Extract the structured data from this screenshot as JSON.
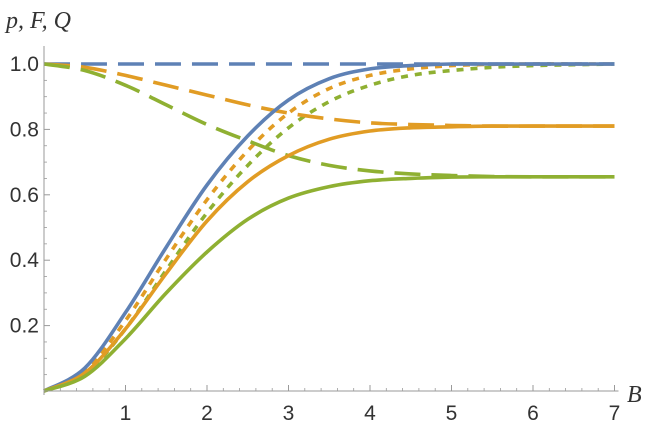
{
  "chart_data": {
    "type": "line",
    "xlabel": "B",
    "ylabel": "p, F, Q",
    "xlim": [
      0,
      7
    ],
    "ylim": [
      0,
      1.0
    ],
    "x_ticks": [
      1,
      2,
      3,
      4,
      5,
      6,
      7
    ],
    "y_ticks": [
      0.2,
      0.4,
      0.6,
      0.8,
      1.0
    ],
    "x_tick_labels": [
      "1",
      "2",
      "3",
      "4",
      "5",
      "6",
      "7"
    ],
    "y_tick_labels": [
      "0.2",
      "0.4",
      "0.6",
      "0.8",
      "1.0"
    ],
    "x": [
      0,
      0.5,
      1,
      1.5,
      2,
      2.5,
      3,
      3.5,
      4,
      4.5,
      5,
      5.5,
      6,
      6.5,
      7
    ],
    "series": [
      {
        "name": "blue solid",
        "color": "#5e81b5",
        "style": "solid",
        "values": [
          0,
          0.07,
          0.24,
          0.44,
          0.63,
          0.78,
          0.89,
          0.955,
          0.985,
          0.995,
          1.0,
          1.0,
          1.0,
          1.0,
          1.0
        ]
      },
      {
        "name": "blue dashed",
        "color": "#5e81b5",
        "style": "dashed",
        "values": [
          1.0,
          1.0,
          1.0,
          1.0,
          1.0,
          1.0,
          1.0,
          1.0,
          1.0,
          1.0,
          1.0,
          1.0,
          1.0,
          1.0,
          1.0
        ]
      },
      {
        "name": "orange solid",
        "color": "#e19c24",
        "style": "solid",
        "values": [
          0,
          0.055,
          0.19,
          0.36,
          0.52,
          0.64,
          0.72,
          0.77,
          0.795,
          0.805,
          0.808,
          0.81,
          0.81,
          0.81,
          0.81
        ]
      },
      {
        "name": "orange dashed",
        "color": "#e19c24",
        "style": "dashed",
        "values": [
          1.0,
          0.99,
          0.965,
          0.935,
          0.905,
          0.875,
          0.85,
          0.832,
          0.82,
          0.815,
          0.812,
          0.81,
          0.81,
          0.81,
          0.81
        ]
      },
      {
        "name": "orange dotted",
        "color": "#e19c24",
        "style": "dotted",
        "values": [
          0,
          0.06,
          0.215,
          0.405,
          0.585,
          0.735,
          0.85,
          0.925,
          0.965,
          0.985,
          0.995,
          0.999,
          1.0,
          1.0,
          1.0
        ]
      },
      {
        "name": "green solid",
        "color": "#8fb032",
        "style": "solid",
        "values": [
          0,
          0.045,
          0.16,
          0.3,
          0.425,
          0.525,
          0.59,
          0.625,
          0.643,
          0.65,
          0.654,
          0.655,
          0.655,
          0.655,
          0.655
        ]
      },
      {
        "name": "green dashed",
        "color": "#8fb032",
        "style": "dashed",
        "values": [
          1.0,
          0.98,
          0.935,
          0.875,
          0.815,
          0.765,
          0.72,
          0.69,
          0.673,
          0.664,
          0.659,
          0.656,
          0.655,
          0.655,
          0.655
        ]
      },
      {
        "name": "green dotted",
        "color": "#8fb032",
        "style": "dotted",
        "values": [
          0,
          0.05,
          0.19,
          0.37,
          0.545,
          0.69,
          0.805,
          0.885,
          0.935,
          0.965,
          0.98,
          0.99,
          0.995,
          0.998,
          1.0
        ]
      }
    ]
  }
}
